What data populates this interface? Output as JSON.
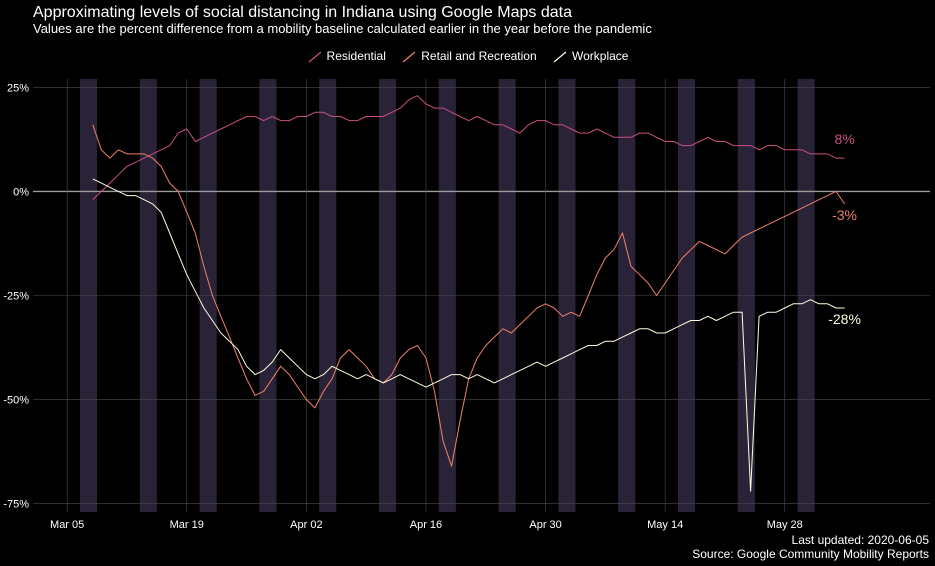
{
  "title": "Approximating levels of social distancing in Indiana using Google Maps data",
  "subtitle": "Values are the percent difference from a mobility baseline calculated earlier in the year before the pandemic",
  "footer": {
    "updated": "Last updated: 2020-06-05",
    "source": "Source: Google Community Mobility Reports"
  },
  "chart_data": {
    "type": "line",
    "title": "Approximating levels of social distancing in Indiana using Google Maps data",
    "subtitle": "Values are the percent difference from a mobility baseline calculated earlier in the year before the pandemic",
    "xlabel": "",
    "ylabel": "",
    "x_start": "2020-03-08",
    "ylim": [
      -77,
      27
    ],
    "y_ticks": [
      25,
      0,
      -25,
      -50,
      -75
    ],
    "y_tick_labels": [
      "25%",
      "0%",
      "-25%",
      "-50%",
      "-75%"
    ],
    "x_ticks": [
      "2020-03-05",
      "2020-03-19",
      "2020-04-02",
      "2020-04-16",
      "2020-04-30",
      "2020-05-14",
      "2020-05-28"
    ],
    "x_tick_labels": [
      "Mar 05",
      "Mar 19",
      "Apr 02",
      "Apr 16",
      "Apr 30",
      "May 14",
      "May 28"
    ],
    "xlim": [
      "2020-03-01",
      "2020-06-14"
    ],
    "grid": true,
    "legend_position": "top",
    "weekend_bands": [
      [
        "2020-03-07",
        "2020-03-08"
      ],
      [
        "2020-03-14",
        "2020-03-15"
      ],
      [
        "2020-03-21",
        "2020-03-22"
      ],
      [
        "2020-03-28",
        "2020-03-29"
      ],
      [
        "2020-04-04",
        "2020-04-05"
      ],
      [
        "2020-04-11",
        "2020-04-12"
      ],
      [
        "2020-04-18",
        "2020-04-19"
      ],
      [
        "2020-04-25",
        "2020-04-26"
      ],
      [
        "2020-05-02",
        "2020-05-03"
      ],
      [
        "2020-05-09",
        "2020-05-10"
      ],
      [
        "2020-05-16",
        "2020-05-17"
      ],
      [
        "2020-05-23",
        "2020-05-24"
      ],
      [
        "2020-05-30",
        "2020-05-31"
      ]
    ],
    "series": [
      {
        "name": "Residential",
        "color": "#c94f86",
        "end_label": "8%",
        "values": [
          -2,
          0,
          2,
          4,
          6,
          7,
          8,
          9,
          10,
          11,
          14,
          15,
          12,
          13,
          14,
          15,
          16,
          17,
          18,
          18,
          17,
          18,
          17,
          17,
          18,
          18,
          19,
          19,
          18,
          18,
          17,
          17,
          18,
          18,
          18,
          19,
          20,
          22,
          23,
          21,
          20,
          20,
          19,
          18,
          17,
          18,
          17,
          16,
          16,
          15,
          14,
          16,
          17,
          17,
          16,
          16,
          15,
          14,
          14,
          15,
          14,
          13,
          13,
          13,
          14,
          14,
          13,
          12,
          12,
          11,
          11,
          12,
          13,
          12,
          12,
          11,
          11,
          11,
          10,
          11,
          11,
          10,
          10,
          10,
          9,
          9,
          9,
          8,
          8
        ]
      },
      {
        "name": "Retail and Recreation",
        "color": "#f0806a",
        "end_label": "-3%",
        "values": [
          16,
          10,
          8,
          10,
          9,
          9,
          9,
          8,
          6,
          2,
          0,
          -5,
          -10,
          -18,
          -25,
          -30,
          -35,
          -40,
          -45,
          -49,
          -48,
          -45,
          -42,
          -44,
          -47,
          -50,
          -52,
          -48,
          -45,
          -40,
          -38,
          -40,
          -42,
          -45,
          -46,
          -44,
          -40,
          -38,
          -37,
          -40,
          -48,
          -60,
          -66,
          -55,
          -45,
          -40,
          -37,
          -35,
          -33,
          -34,
          -32,
          -30,
          -28,
          -27,
          -28,
          -30,
          -29,
          -30,
          -25,
          -20,
          -16,
          -14,
          -10,
          -18,
          -20,
          -22,
          -25,
          -22,
          -19,
          -16,
          -14,
          -12,
          -13,
          -14,
          -15,
          -13,
          -11,
          -10,
          -9,
          -8,
          -7,
          -6,
          -5,
          -4,
          -3,
          -2,
          -1,
          0,
          -3
        ]
      },
      {
        "name": "Workplace",
        "color": "#fffde0",
        "end_label": "-28%",
        "values": [
          3,
          2,
          1,
          0,
          -1,
          -1,
          -2,
          -3,
          -5,
          -10,
          -15,
          -20,
          -24,
          -28,
          -31,
          -34,
          -36,
          -38,
          -42,
          -44,
          -43,
          -41,
          -38,
          -40,
          -42,
          -44,
          -45,
          -44,
          -42,
          -43,
          -44,
          -45,
          -44,
          -45,
          -46,
          -45,
          -44,
          -45,
          -46,
          -47,
          -46,
          -45,
          -44,
          -44,
          -45,
          -44,
          -45,
          -46,
          -45,
          -44,
          -43,
          -42,
          -41,
          -42,
          -41,
          -40,
          -39,
          -38,
          -37,
          -37,
          -36,
          -36,
          -35,
          -34,
          -33,
          -33,
          -34,
          -34,
          -33,
          -32,
          -31,
          -31,
          -30,
          -31,
          -30,
          -29,
          -29,
          -72,
          -30,
          -29,
          -29,
          -28,
          -27,
          -27,
          -26,
          -27,
          -27,
          -28,
          -28
        ]
      }
    ]
  }
}
